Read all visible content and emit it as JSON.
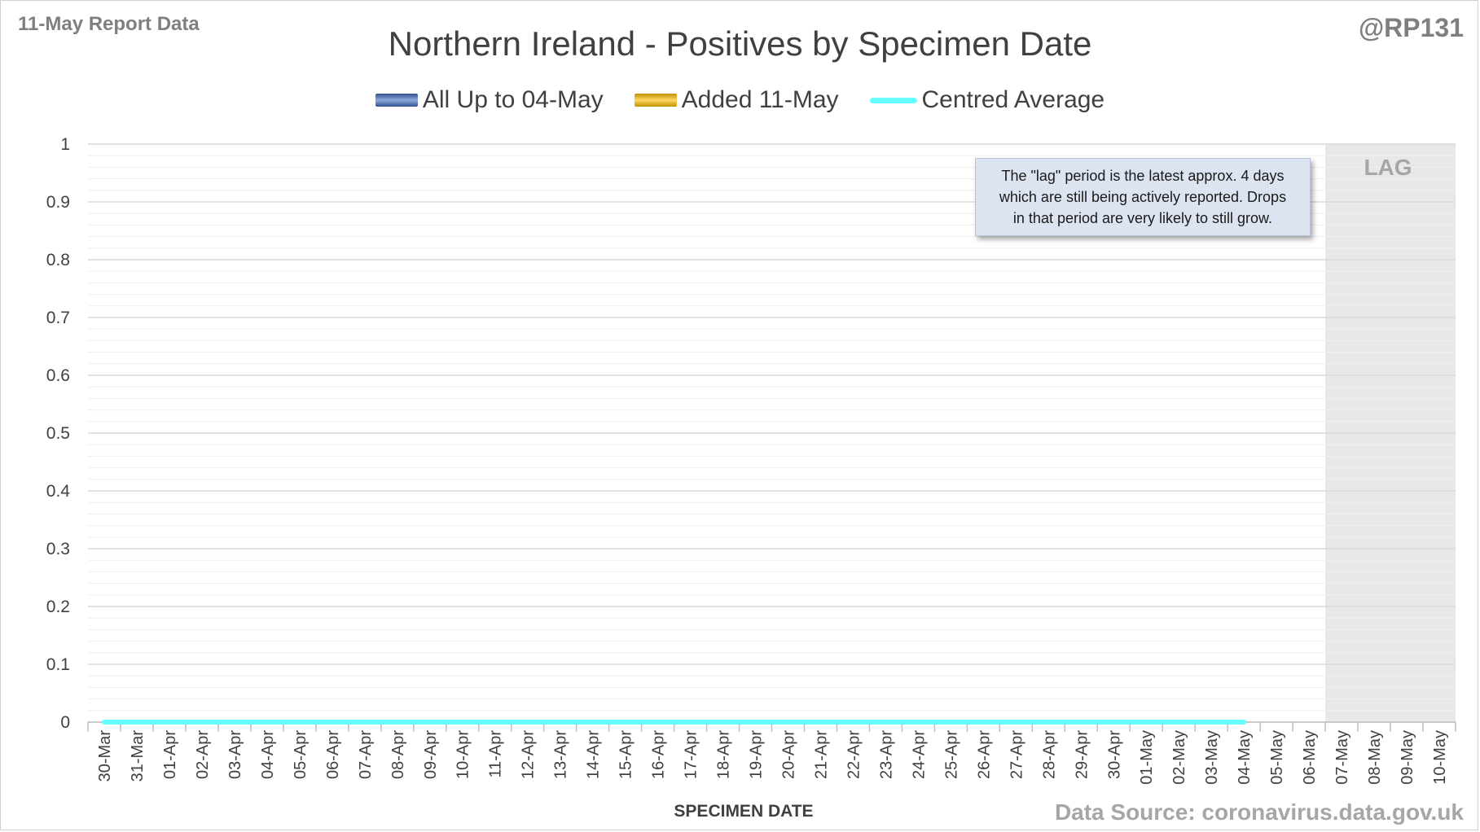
{
  "header": {
    "report_label": "11-May Report Data",
    "handle": "@RP131"
  },
  "annotation": {
    "lines": [
      "The \"lag\" period is the latest approx. 4 days",
      "which are still being actively reported. Drops",
      "in that period are very likely to still grow."
    ],
    "lag_label": "LAG"
  },
  "source": "Data Source: coronavirus.data.gov.uk",
  "colors": {
    "bar_all": "#4472c4",
    "bar_added": "#ffc000",
    "line_avg": "#66ffff",
    "lag_shade": "#e8e8e8",
    "grid_major": "#d9d9d9",
    "grid_minor": "#efefef",
    "text": "#404040"
  },
  "chart_data": {
    "type": "bar",
    "title": "Northern Ireland - Positives by Specimen Date",
    "xlabel": "SPECIMEN DATE",
    "ylabel": "",
    "ylim": [
      0,
      1
    ],
    "yticks": [
      "0",
      "0.1",
      "0.2",
      "0.3",
      "0.4",
      "0.5",
      "0.6",
      "0.7",
      "0.8",
      "0.9",
      "1"
    ],
    "grid": true,
    "legend_position": "top-center",
    "categories": [
      "30-Mar",
      "31-Mar",
      "01-Apr",
      "02-Apr",
      "03-Apr",
      "04-Apr",
      "05-Apr",
      "06-Apr",
      "07-Apr",
      "08-Apr",
      "09-Apr",
      "10-Apr",
      "11-Apr",
      "12-Apr",
      "13-Apr",
      "14-Apr",
      "15-Apr",
      "16-Apr",
      "17-Apr",
      "18-Apr",
      "19-Apr",
      "20-Apr",
      "21-Apr",
      "22-Apr",
      "23-Apr",
      "24-Apr",
      "25-Apr",
      "26-Apr",
      "27-Apr",
      "28-Apr",
      "29-Apr",
      "30-Apr",
      "01-May",
      "02-May",
      "03-May",
      "04-May",
      "05-May",
      "06-May",
      "07-May",
      "08-May",
      "09-May",
      "10-May"
    ],
    "lag_period": [
      "07-May",
      "10-May"
    ],
    "series": [
      {
        "name": "All Up to 04-May",
        "kind": "bar",
        "values": [
          0,
          0,
          0,
          0,
          0,
          0,
          0,
          0,
          0,
          0,
          0,
          0,
          0,
          0,
          0,
          0,
          0,
          0,
          0,
          0,
          0,
          0,
          0,
          0,
          0,
          0,
          0,
          0,
          0,
          0,
          0,
          0,
          0,
          0,
          0,
          0,
          0,
          0,
          0,
          0,
          0,
          0
        ]
      },
      {
        "name": "Added 11-May",
        "kind": "bar",
        "values": [
          0,
          0,
          0,
          0,
          0,
          0,
          0,
          0,
          0,
          0,
          0,
          0,
          0,
          0,
          0,
          0,
          0,
          0,
          0,
          0,
          0,
          0,
          0,
          0,
          0,
          0,
          0,
          0,
          0,
          0,
          0,
          0,
          0,
          0,
          0,
          0,
          0,
          0,
          0,
          0,
          0,
          0
        ]
      },
      {
        "name": "Centred Average",
        "kind": "line",
        "values": [
          0,
          0,
          0,
          0,
          0,
          0,
          0,
          0,
          0,
          0,
          0,
          0,
          0,
          0,
          0,
          0,
          0,
          0,
          0,
          0,
          0,
          0,
          0,
          0,
          0,
          0,
          0,
          0,
          0,
          0,
          0,
          0,
          0,
          0,
          0,
          0,
          null,
          null,
          null,
          null,
          null,
          null
        ]
      }
    ]
  }
}
